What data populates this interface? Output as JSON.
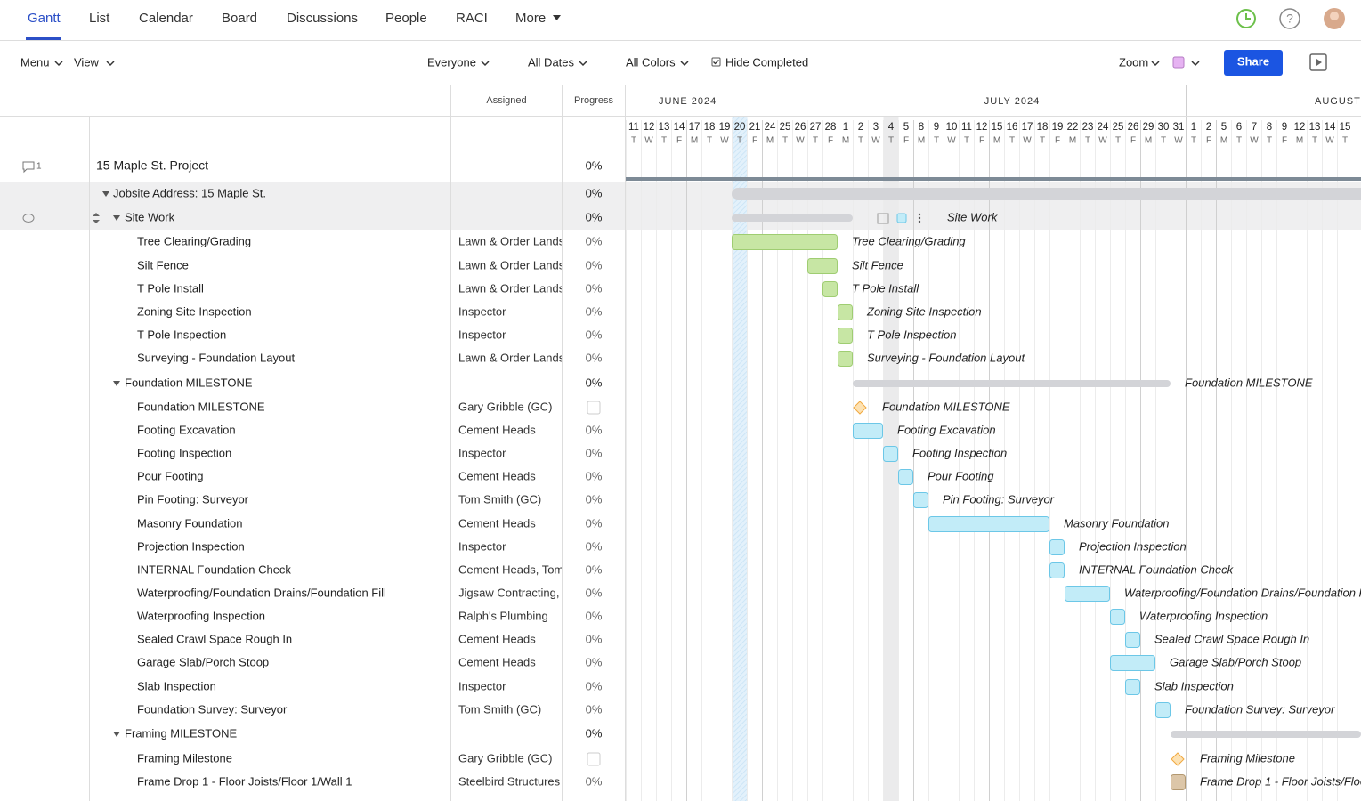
{
  "tabs": [
    "Gantt",
    "List",
    "Calendar",
    "Board",
    "Discussions",
    "People",
    "RACI",
    "More"
  ],
  "toolbar": {
    "menu": "Menu",
    "view": "View",
    "filters": [
      "Everyone",
      "All Dates",
      "All Colors"
    ],
    "hide_completed": "Hide Completed",
    "zoom": "Zoom",
    "share": "Share"
  },
  "columns": {
    "assigned": "Assigned",
    "progress": "Progress"
  },
  "comment_count": "1",
  "months": [
    "JUNE 2024",
    "JULY 2024",
    "AUGUST"
  ],
  "days": [
    11,
    12,
    13,
    14,
    17,
    18,
    19,
    20,
    21,
    24,
    25,
    26,
    27,
    28,
    1,
    2,
    3,
    4,
    5,
    8,
    9,
    10,
    11,
    12,
    15,
    16,
    17,
    18,
    19,
    22,
    23,
    24,
    25,
    26,
    29,
    30,
    31,
    1,
    2,
    5,
    6,
    7,
    8,
    9,
    12,
    13,
    14,
    15
  ],
  "weekdays": [
    "T",
    "W",
    "T",
    "F",
    "M",
    "T",
    "W",
    "T",
    "F",
    "M",
    "T",
    "W",
    "T",
    "F",
    "M",
    "T",
    "W",
    "T",
    "F",
    "M",
    "T",
    "W",
    "T",
    "F",
    "M",
    "T",
    "W",
    "T",
    "F",
    "M",
    "T",
    "W",
    "T",
    "F",
    "M",
    "T",
    "W",
    "T",
    "F",
    "M",
    "T",
    "W",
    "T",
    "F",
    "M",
    "T",
    "W",
    "T"
  ],
  "rows": [
    {
      "name": "15 Maple St. Project",
      "progress": "0%"
    },
    {
      "name": "Jobsite Address: 15 Maple St.",
      "progress": "0%"
    },
    {
      "name": "Site Work",
      "progress": "0%"
    },
    {
      "name": "Tree Clearing/Grading",
      "assigned": "Lawn & Order Lands",
      "progress": "0%"
    },
    {
      "name": "Silt Fence",
      "assigned": "Lawn & Order Lands",
      "progress": "0%"
    },
    {
      "name": "T Pole Install",
      "assigned": "Lawn & Order Lands",
      "progress": "0%"
    },
    {
      "name": "Zoning Site Inspection",
      "assigned": "Inspector",
      "progress": "0%"
    },
    {
      "name": "T Pole Inspection",
      "assigned": "Inspector",
      "progress": "0%"
    },
    {
      "name": "Surveying - Foundation Layout",
      "assigned": "Lawn & Order Lands",
      "progress": "0%"
    },
    {
      "name": "Foundation MILESTONE",
      "progress": "0%"
    },
    {
      "name": "Foundation MILESTONE",
      "assigned": "Gary Gribble (GC)"
    },
    {
      "name": "Footing Excavation",
      "assigned": "Cement Heads",
      "progress": "0%"
    },
    {
      "name": "Footing Inspection",
      "assigned": "Inspector",
      "progress": "0%"
    },
    {
      "name": "Pour Footing",
      "assigned": "Cement Heads",
      "progress": "0%"
    },
    {
      "name": "Pin Footing: Surveyor",
      "assigned": "Tom Smith (GC)",
      "progress": "0%"
    },
    {
      "name": "Masonry Foundation",
      "assigned": "Cement Heads",
      "progress": "0%"
    },
    {
      "name": "Projection Inspection",
      "assigned": "Inspector",
      "progress": "0%"
    },
    {
      "name": "INTERNAL Foundation Check",
      "assigned": "Cement Heads, Tom",
      "progress": "0%"
    },
    {
      "name": "Waterproofing/Foundation Drains/Foundation Fill",
      "assigned": "Jigsaw Contracting,",
      "progress": "0%"
    },
    {
      "name": "Waterproofing Inspection",
      "assigned": "Ralph's Plumbing",
      "progress": "0%"
    },
    {
      "name": "Sealed Crawl Space Rough In",
      "assigned": "Cement Heads",
      "progress": "0%"
    },
    {
      "name": "Garage Slab/Porch Stoop",
      "assigned": "Cement Heads",
      "progress": "0%"
    },
    {
      "name": "Slab Inspection",
      "assigned": "Inspector",
      "progress": "0%"
    },
    {
      "name": "Foundation Survey: Surveyor",
      "assigned": "Tom Smith (GC)",
      "progress": "0%"
    },
    {
      "name": "Framing MILESTONE",
      "progress": "0%"
    },
    {
      "name": "Framing Milestone",
      "assigned": "Gary Gribble (GC)"
    },
    {
      "name": "Frame Drop 1 - Floor Joists/Floor 1/Wall 1",
      "assigned": "Steelbird Structures",
      "progress": "0%"
    }
  ]
}
